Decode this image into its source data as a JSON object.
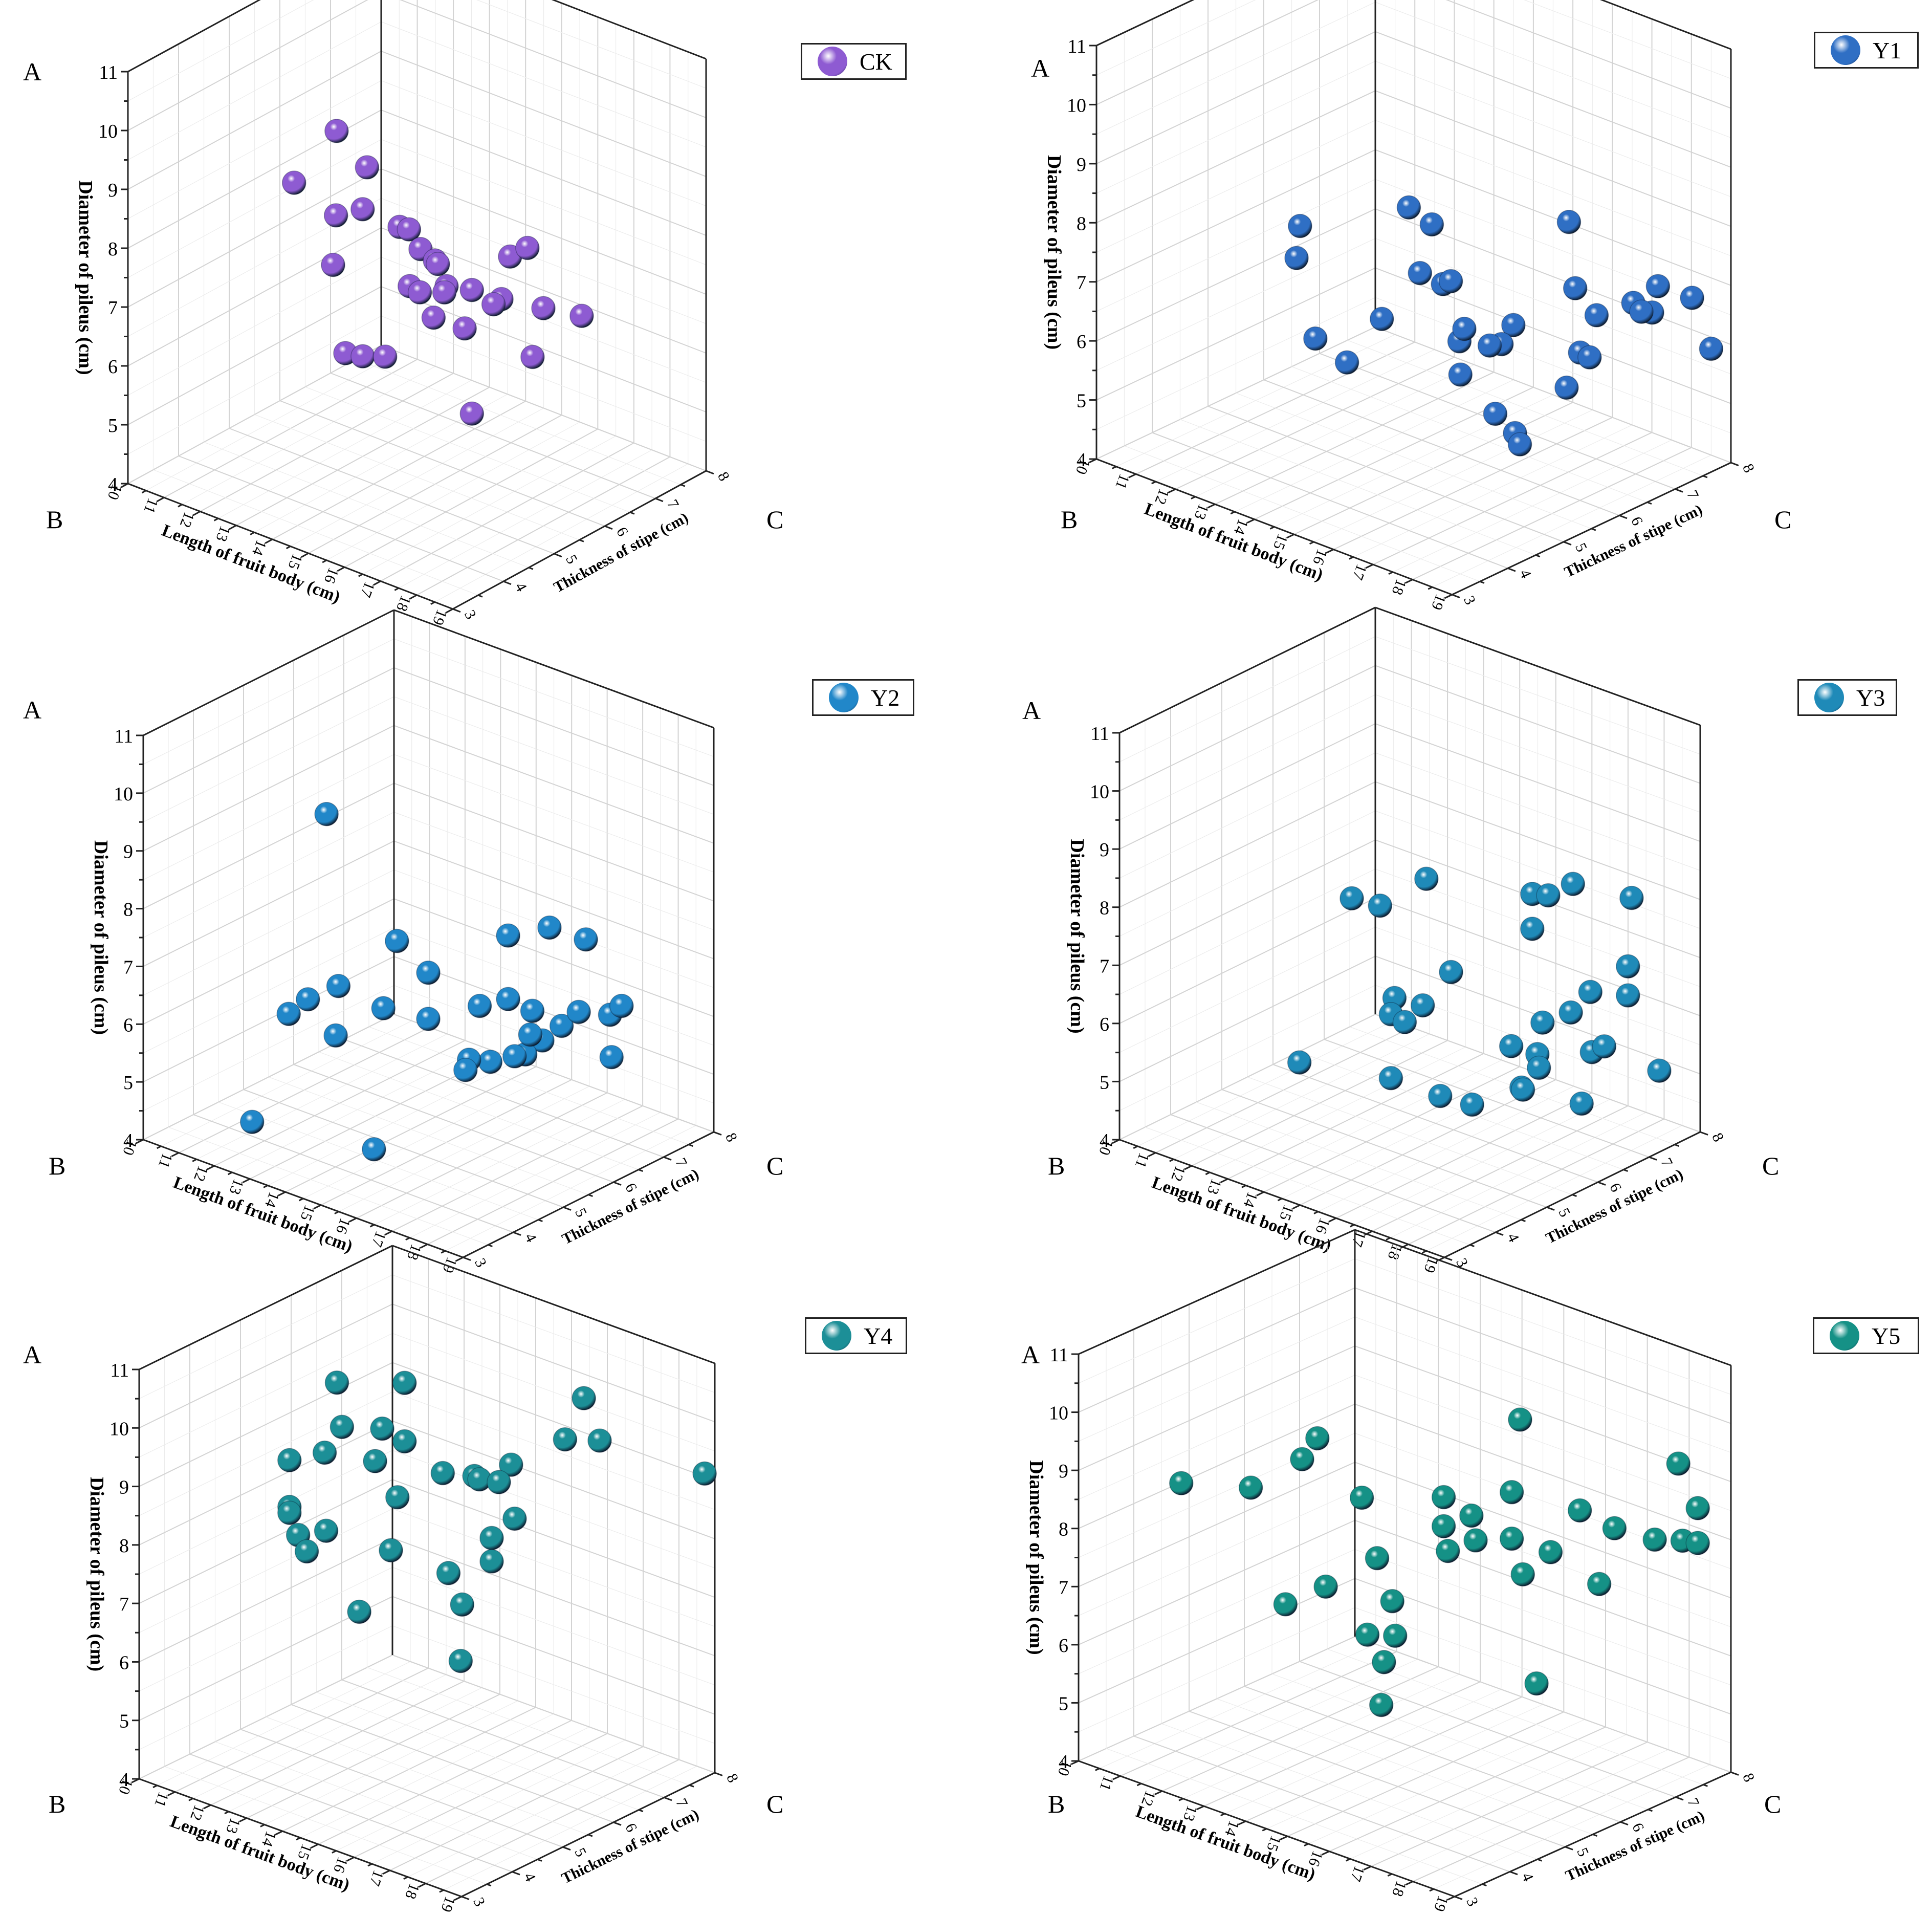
{
  "axes": {
    "vertical": {
      "label": "Diameter of pileus (cm)",
      "ticks": [
        "4",
        "5",
        "6",
        "7",
        "8",
        "9",
        "10",
        "11"
      ],
      "range": [
        4,
        11
      ]
    },
    "left": {
      "label": "Length of fruit  body (cm)",
      "ticks": [
        "10",
        "11",
        "12",
        "13",
        "14",
        "15",
        "16",
        "17",
        "18",
        "19"
      ],
      "range": [
        10,
        19
      ]
    },
    "right": {
      "label": "Thickness of stipe (cm)",
      "ticks": [
        "3",
        "4",
        "5",
        "6",
        "7",
        "8"
      ],
      "range": [
        3,
        8
      ]
    },
    "corner_labels": {
      "top": "A",
      "left": "B",
      "right": "C"
    },
    "grid": true
  },
  "chart_data": [
    {
      "type": "scatter",
      "series": "CK",
      "color": "#8e5bd2",
      "legend_position": "top-right",
      "points": [
        [
          15.5,
          3.2,
          11.2
        ],
        [
          13.2,
          4.0,
          9.4
        ],
        [
          14.8,
          4.3,
          9.9
        ],
        [
          15.1,
          4.0,
          9.4
        ],
        [
          13.8,
          4.4,
          8.8
        ],
        [
          15.0,
          4.8,
          8.7
        ],
        [
          15.4,
          4.7,
          8.8
        ],
        [
          17.5,
          5.2,
          8.6
        ],
        [
          17.7,
          5.4,
          8.7
        ],
        [
          15.3,
          5.0,
          8.3
        ],
        [
          15.7,
          5.0,
          8.2
        ],
        [
          14.0,
          4.2,
          8.1
        ],
        [
          15.5,
          5.2,
          8.0
        ],
        [
          15.0,
          5.0,
          7.6
        ],
        [
          15.6,
          5.3,
          7.6
        ],
        [
          16.7,
          5.6,
          7.5
        ],
        [
          15.4,
          5.4,
          7.4
        ],
        [
          15.0,
          5.2,
          7.4
        ],
        [
          15.6,
          5.8,
          7.3
        ],
        [
          16.2,
          5.8,
          7.2
        ],
        [
          17.3,
          6.0,
          7.3
        ],
        [
          17.8,
          6.4,
          7.1
        ],
        [
          15.1,
          5.4,
          6.9
        ],
        [
          15.4,
          5.8,
          6.6
        ],
        [
          14.2,
          4.3,
          6.6
        ],
        [
          14.4,
          4.5,
          6.5
        ],
        [
          14.6,
          4.8,
          6.4
        ],
        [
          17.0,
          6.0,
          6.4
        ],
        [
          15.6,
          5.8,
          5.2
        ]
      ]
    },
    {
      "type": "scatter",
      "series": "Y1",
      "color": "#2f6fc4",
      "legend_position": "top-right",
      "points": [
        [
          11.2,
          5.8,
          7.0
        ],
        [
          14.8,
          5.2,
          8.5
        ],
        [
          15.1,
          5.4,
          8.2
        ],
        [
          17.3,
          6.3,
          8.4
        ],
        [
          14.8,
          5.4,
          7.3
        ],
        [
          15.1,
          5.6,
          7.1
        ],
        [
          12.1,
          5.1,
          7.0
        ],
        [
          15.3,
          5.6,
          7.2
        ],
        [
          17.6,
          6.2,
          7.4
        ],
        [
          18.0,
          6.3,
          7.0
        ],
        [
          16.6,
          5.8,
          6.7
        ],
        [
          14.4,
          5.0,
          6.6
        ],
        [
          16.3,
          5.8,
          6.3
        ],
        [
          15.8,
          5.4,
          6.4
        ],
        [
          15.5,
          5.7,
          6.4
        ],
        [
          16.0,
          5.8,
          6.2
        ],
        [
          13.8,
          4.8,
          5.8
        ],
        [
          18.7,
          6.8,
          7.0
        ],
        [
          17.8,
          7.1,
          6.8
        ],
        [
          17.3,
          6.5,
          6.1
        ],
        [
          17.4,
          6.6,
          6.0
        ],
        [
          18.0,
          7.4,
          7.0
        ],
        [
          13.0,
          4.8,
          6.0
        ],
        [
          15.4,
          5.7,
          5.6
        ],
        [
          17.1,
          6.4,
          5.5
        ],
        [
          16.0,
          5.9,
          5.0
        ],
        [
          16.5,
          5.9,
          4.8
        ],
        [
          18.3,
          7.8,
          6.7
        ],
        [
          17.3,
          7.6,
          6.3
        ],
        [
          18.5,
          8.0,
          5.8
        ],
        [
          16.2,
          6.2,
          4.4
        ]
      ]
    },
    {
      "type": "scatter",
      "series": "Y2",
      "color": "#2187c9",
      "legend_position": "top-right",
      "points": [
        [
          12.9,
          4.6,
          9.6
        ],
        [
          14.6,
          4.8,
          7.7
        ],
        [
          15.2,
          5.0,
          7.2
        ],
        [
          13.8,
          4.2,
          7.0
        ],
        [
          17.2,
          6.0,
          8.0
        ],
        [
          16.6,
          5.6,
          7.9
        ],
        [
          17.8,
          6.3,
          7.8
        ],
        [
          14.5,
          4.6,
          6.6
        ],
        [
          15.2,
          5.0,
          6.4
        ],
        [
          16.6,
          5.6,
          6.8
        ],
        [
          17.0,
          5.8,
          6.6
        ],
        [
          15.8,
          5.6,
          6.5
        ],
        [
          12.4,
          4.2,
          6.2
        ],
        [
          12.8,
          4.3,
          6.5
        ],
        [
          18.2,
          6.5,
          6.5
        ],
        [
          18.1,
          6.8,
          6.5
        ],
        [
          13.3,
          4.5,
          5.9
        ],
        [
          17.0,
          6.0,
          6.0
        ],
        [
          16.8,
          5.8,
          5.8
        ],
        [
          16.1,
          5.6,
          5.6
        ],
        [
          16.5,
          5.8,
          5.7
        ],
        [
          16.8,
          5.9,
          6.1
        ],
        [
          17.4,
          6.1,
          6.3
        ],
        [
          17.6,
          6.3,
          6.5
        ],
        [
          15.5,
          5.6,
          5.5
        ],
        [
          15.4,
          5.6,
          5.3
        ],
        [
          18.1,
          6.6,
          5.7
        ],
        [
          12.5,
          3.4,
          4.7
        ],
        [
          14.8,
          4.2,
          4.4
        ]
      ]
    },
    {
      "type": "scatter",
      "series": "Y3",
      "color": "#1f8ab8",
      "legend_position": "top-right",
      "points": [
        [
          13.6,
          5.0,
          8.1
        ],
        [
          14.1,
          5.2,
          8.0
        ],
        [
          15.1,
          5.4,
          8.6
        ],
        [
          16.9,
          6.2,
          8.4
        ],
        [
          17.2,
          6.3,
          8.4
        ],
        [
          17.6,
          6.5,
          8.6
        ],
        [
          18.8,
          6.8,
          8.5
        ],
        [
          16.9,
          6.2,
          7.8
        ],
        [
          15.5,
          5.6,
          7.0
        ],
        [
          18.7,
          6.8,
          7.3
        ],
        [
          18.7,
          6.8,
          6.8
        ],
        [
          17.8,
          6.7,
          6.7
        ],
        [
          14.5,
          5.2,
          6.5
        ],
        [
          14.4,
          5.2,
          6.2
        ],
        [
          15.0,
          5.4,
          6.4
        ],
        [
          17.4,
          6.6,
          6.3
        ],
        [
          14.5,
          5.4,
          6.0
        ],
        [
          16.9,
          6.4,
          6.1
        ],
        [
          16.6,
          6.0,
          5.8
        ],
        [
          16.9,
          6.3,
          5.6
        ],
        [
          17.7,
          6.8,
          5.6
        ],
        [
          17.9,
          6.9,
          5.7
        ],
        [
          13.0,
          4.4,
          5.4
        ],
        [
          16.8,
          6.4,
          5.3
        ],
        [
          19.0,
          7.2,
          5.4
        ],
        [
          14.4,
          5.2,
          5.1
        ],
        [
          16.6,
          6.2,
          5.0
        ],
        [
          16.5,
          6.3,
          4.9
        ],
        [
          15.2,
          5.6,
          4.8
        ],
        [
          15.8,
          5.8,
          4.7
        ],
        [
          17.7,
          6.6,
          4.8
        ]
      ]
    },
    {
      "type": "scatter",
      "series": "Y4",
      "color": "#1c8f97",
      "legend_position": "top-right",
      "points": [
        [
          13.4,
          4.5,
          10.9
        ],
        [
          14.3,
          5.2,
          10.8
        ],
        [
          13.4,
          4.6,
          10.1
        ],
        [
          14.1,
          4.9,
          10.1
        ],
        [
          14.3,
          5.2,
          9.8
        ],
        [
          13.2,
          4.4,
          9.7
        ],
        [
          13.9,
          4.9,
          9.5
        ],
        [
          12.5,
          4.2,
          9.5
        ],
        [
          15.4,
          5.8,
          9.2
        ],
        [
          15.4,
          5.9,
          9.1
        ],
        [
          16.0,
          6.1,
          9.4
        ],
        [
          15.8,
          6.0,
          9.1
        ],
        [
          14.8,
          5.6,
          9.2
        ],
        [
          16.9,
          6.9,
          10.4
        ],
        [
          16.8,
          6.6,
          9.8
        ],
        [
          17.2,
          7.0,
          9.7
        ],
        [
          19.0,
          7.8,
          9.2
        ],
        [
          12.5,
          4.2,
          8.7
        ],
        [
          12.5,
          4.2,
          8.6
        ],
        [
          16.1,
          6.1,
          8.5
        ],
        [
          14.1,
          5.2,
          8.8
        ],
        [
          12.6,
          4.3,
          8.2
        ],
        [
          13.1,
          4.5,
          8.3
        ],
        [
          12.7,
          4.4,
          7.9
        ],
        [
          15.6,
          6.0,
          8.1
        ],
        [
          14.2,
          5.0,
          8.0
        ],
        [
          15.1,
          5.5,
          7.6
        ],
        [
          15.6,
          6.0,
          7.7
        ],
        [
          13.6,
          4.8,
          6.9
        ],
        [
          15.2,
          5.7,
          7.0
        ],
        [
          15.3,
          5.6,
          6.1
        ]
      ]
    },
    {
      "type": "scatter",
      "series": "Y5",
      "color": "#159186",
      "legend_position": "top-right",
      "points": [
        [
          16.6,
          6.0,
          10.3
        ],
        [
          18.8,
          7.2,
          9.6
        ],
        [
          13.6,
          4.6,
          9.8
        ],
        [
          13.5,
          4.4,
          9.5
        ],
        [
          12.8,
          4.0,
          9.0
        ],
        [
          16.4,
          6.0,
          9.0
        ],
        [
          14.4,
          4.8,
          8.9
        ],
        [
          15.3,
          5.6,
          8.8
        ],
        [
          17.5,
          6.4,
          8.8
        ],
        [
          17.8,
          6.8,
          8.4
        ],
        [
          18.9,
          7.2,
          8.3
        ],
        [
          19.0,
          7.4,
          8.8
        ],
        [
          15.7,
          5.8,
          8.5
        ],
        [
          15.3,
          5.6,
          8.3
        ],
        [
          15.8,
          5.8,
          8.1
        ],
        [
          16.4,
          6.0,
          8.2
        ],
        [
          14.5,
          5.0,
          7.8
        ],
        [
          15.4,
          5.6,
          7.9
        ],
        [
          16.8,
          6.4,
          7.9
        ],
        [
          18.5,
          7.0,
          8.3
        ],
        [
          19.0,
          7.4,
          8.2
        ],
        [
          11.4,
          3.8,
          8.8
        ],
        [
          14.6,
          5.2,
          7.0
        ],
        [
          13.8,
          4.6,
          7.3
        ],
        [
          17.7,
          6.6,
          7.5
        ],
        [
          16.4,
          6.2,
          7.5
        ],
        [
          13.1,
          4.4,
          6.9
        ],
        [
          14.4,
          4.9,
          6.5
        ],
        [
          14.8,
          5.1,
          6.5
        ],
        [
          14.4,
          5.2,
          5.9
        ],
        [
          16.2,
          6.6,
          5.4
        ],
        [
          14.6,
          5.0,
          5.3
        ]
      ]
    }
  ]
}
